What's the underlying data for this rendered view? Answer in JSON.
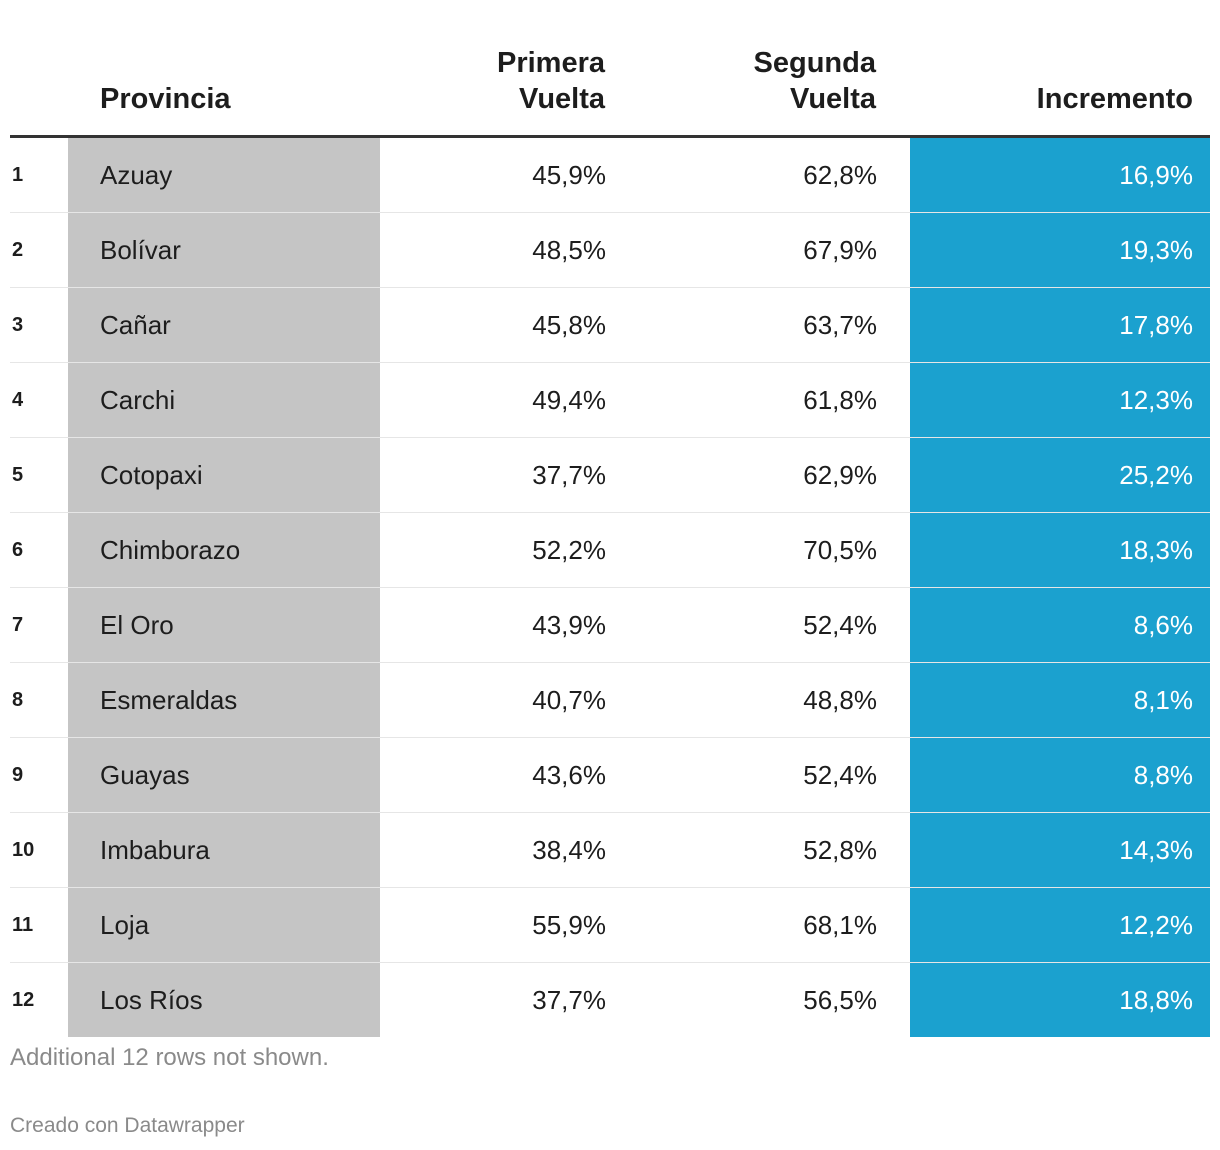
{
  "chart_data": {
    "type": "table",
    "columns": [
      "",
      "Provincia",
      "Primera\nVuelta",
      "Segunda\nVuelta",
      "Incremento"
    ],
    "header": {
      "provincia": "Provincia",
      "primera_line1": "Primera",
      "primera_line2": "Vuelta",
      "segunda_line1": "Segunda",
      "segunda_line2": "Vuelta",
      "incremento": "Incremento"
    },
    "rows": [
      {
        "rank": "1",
        "provincia": "Azuay",
        "primera": "45,9%",
        "segunda": "62,8%",
        "incremento": "16,9%"
      },
      {
        "rank": "2",
        "provincia": "Bolívar",
        "primera": "48,5%",
        "segunda": "67,9%",
        "incremento": "19,3%"
      },
      {
        "rank": "3",
        "provincia": "Cañar",
        "primera": "45,8%",
        "segunda": "63,7%",
        "incremento": "17,8%"
      },
      {
        "rank": "4",
        "provincia": "Carchi",
        "primera": "49,4%",
        "segunda": "61,8%",
        "incremento": "12,3%"
      },
      {
        "rank": "5",
        "provincia": "Cotopaxi",
        "primera": "37,7%",
        "segunda": "62,9%",
        "incremento": "25,2%"
      },
      {
        "rank": "6",
        "provincia": "Chimborazo",
        "primera": "52,2%",
        "segunda": "70,5%",
        "incremento": "18,3%"
      },
      {
        "rank": "7",
        "provincia": "El Oro",
        "primera": "43,9%",
        "segunda": "52,4%",
        "incremento": "8,6%"
      },
      {
        "rank": "8",
        "provincia": "Esmeraldas",
        "primera": "40,7%",
        "segunda": "48,8%",
        "incremento": "8,1%"
      },
      {
        "rank": "9",
        "provincia": "Guayas",
        "primera": "43,6%",
        "segunda": "52,4%",
        "incremento": "8,8%"
      },
      {
        "rank": "10",
        "provincia": "Imbabura",
        "primera": "38,4%",
        "segunda": "52,8%",
        "incremento": "14,3%"
      },
      {
        "rank": "11",
        "provincia": "Loja",
        "primera": "55,9%",
        "segunda": "68,1%",
        "incremento": "12,2%"
      },
      {
        "rank": "12",
        "provincia": "Los Ríos",
        "primera": "37,7%",
        "segunda": "56,5%",
        "incremento": "18,8%"
      }
    ],
    "colors": {
      "provincia_column": "#c5c5c5",
      "incremento_column": "#1ba1cf"
    }
  },
  "footer": {
    "note": "Additional 12 rows not shown.",
    "credit": "Creado con Datawrapper"
  }
}
